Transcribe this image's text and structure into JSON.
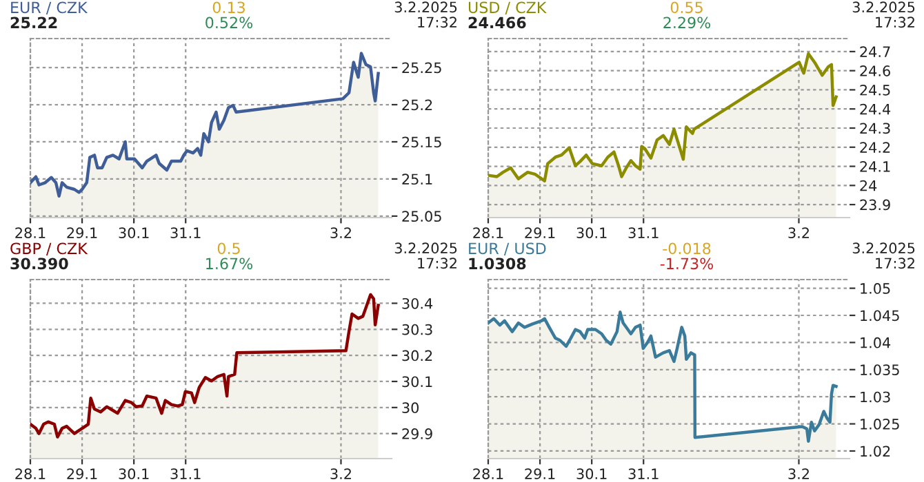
{
  "chart_data": [
    {
      "type": "area",
      "title": "EUR / CZK",
      "subtitle": "25.22",
      "annotations": [
        "0.13",
        "0.52%",
        "3.2.2025",
        "17:32"
      ],
      "x": [
        "2025-01-28T00:00",
        "2025-01-28T02:34",
        "2025-01-28T04:00",
        "2025-01-28T06:52",
        "2025-01-28T09:43",
        "2025-01-28T11:51",
        "2025-01-28T13:18",
        "2025-01-28T14:43",
        "2025-01-28T16:51",
        "2025-01-28T20:25",
        "2025-01-28T22:34",
        "2025-01-29T00:00",
        "2025-01-29T02:08",
        "2025-01-29T03:35",
        "2025-01-29T05:43",
        "2025-01-29T07:09",
        "2025-01-29T09:17",
        "2025-01-29T11:25",
        "2025-01-29T14:17",
        "2025-01-29T17:08",
        "2025-01-29T20:00",
        "2025-01-29T20:43",
        "2025-01-30T00:17",
        "2025-01-30T03:52",
        "2025-01-30T06:00",
        "2025-01-30T10:18",
        "2025-01-30T11:43",
        "2025-01-30T15:17",
        "2025-01-30T17:25",
        "2025-01-30T21:43",
        "2025-01-30T23:08",
        "2025-01-31T00:35",
        "2025-01-31T03:26",
        "2025-01-31T05:34",
        "2025-01-31T07:00",
        "2025-01-31T08:25",
        "2025-01-31T10:34",
        "2025-01-31T12:00",
        "2025-01-31T14:08",
        "2025-01-31T15:35",
        "2025-01-31T17:43",
        "2025-01-31T19:51",
        "2025-01-31T22:00",
        "2025-01-31T23:25",
        "2025-02-03T00:52",
        "2025-02-03T03:43",
        "2025-02-03T05:51",
        "2025-02-03T08:00",
        "2025-02-03T09:26",
        "2025-02-03T11:34",
        "2025-02-03T13:42",
        "2025-02-03T15:09",
        "2025-02-03T15:52",
        "2025-02-03T17:17"
      ],
      "series": [
        {
          "color": "#3f5d97",
          "values": [
            25.095,
            25.103,
            25.092,
            25.095,
            25.102,
            25.095,
            25.077,
            25.095,
            25.089,
            25.086,
            25.082,
            25.086,
            25.095,
            25.129,
            25.132,
            25.115,
            25.115,
            25.129,
            25.132,
            25.127,
            25.15,
            25.127,
            25.127,
            25.115,
            25.124,
            25.132,
            25.121,
            25.112,
            25.124,
            25.124,
            25.132,
            25.138,
            25.135,
            25.141,
            25.132,
            25.161,
            25.15,
            25.176,
            25.19,
            25.167,
            25.179,
            25.196,
            25.199,
            25.19,
            25.208,
            25.216,
            25.257,
            25.237,
            25.269,
            25.254,
            25.251,
            25.216,
            25.205,
            25.242
          ]
        }
      ],
      "xlim": [
        "2025-01-28T00:00",
        "2025-02-03T23:30"
      ],
      "xticks": [
        {
          "value": "2025-01-28",
          "label": "28.1"
        },
        {
          "value": "2025-01-29",
          "label": "29.1"
        },
        {
          "value": "2025-01-30",
          "label": "30.1"
        },
        {
          "value": "2025-01-31",
          "label": "31.1"
        },
        {
          "value": "2025-02-03",
          "label": "3.2"
        }
      ],
      "ylim": [
        25.048,
        25.289
      ],
      "yticks": [
        25.05,
        25.1,
        25.15,
        25.2,
        25.25
      ],
      "grid": true
    },
    {
      "type": "area",
      "title": "USD / CZK",
      "subtitle": "24.466",
      "annotations": [
        "0.55",
        "2.29%",
        "3.2.2025",
        "17:32"
      ],
      "x": [
        "2025-01-28T00:00",
        "2025-01-28T04:00",
        "2025-01-28T06:52",
        "2025-01-28T10:26",
        "2025-01-28T14:00",
        "2025-01-28T18:17",
        "2025-01-28T21:52",
        "2025-01-29T02:08",
        "2025-01-29T03:35",
        "2025-01-29T07:09",
        "2025-01-29T10:00",
        "2025-01-29T13:34",
        "2025-01-29T16:26",
        "2025-01-29T18:35",
        "2025-01-29T21:26",
        "2025-01-30T00:17",
        "2025-01-30T04:34",
        "2025-01-30T07:26",
        "2025-01-30T10:18",
        "2025-01-30T12:26",
        "2025-01-30T13:51",
        "2025-01-30T16:00",
        "2025-01-30T18:09",
        "2025-01-30T20:17",
        "2025-01-30T22:26",
        "2025-01-30T23:08",
        "2025-01-31T00:35",
        "2025-01-31T03:26",
        "2025-01-31T06:17",
        "2025-01-31T09:09",
        "2025-01-31T12:00",
        "2025-01-31T14:08",
        "2025-01-31T16:18",
        "2025-01-31T18:26",
        "2025-01-31T19:51",
        "2025-01-31T22:42",
        "2025-01-31T23:25",
        "2025-02-03T00:09",
        "2025-02-03T02:17",
        "2025-02-03T04:26",
        "2025-02-03T07:18",
        "2025-02-03T10:51",
        "2025-02-03T13:42",
        "2025-02-03T15:09",
        "2025-02-03T15:52",
        "2025-02-03T17:17"
      ],
      "series": [
        {
          "color": "#8c8c00",
          "values": [
            24.053,
            24.046,
            24.069,
            24.092,
            24.035,
            24.069,
            24.058,
            24.024,
            24.114,
            24.148,
            24.159,
            24.197,
            24.103,
            24.125,
            24.159,
            24.114,
            24.103,
            24.148,
            24.175,
            24.103,
            24.046,
            24.092,
            24.13,
            24.103,
            24.085,
            24.204,
            24.193,
            24.143,
            24.238,
            24.261,
            24.215,
            24.294,
            24.215,
            24.137,
            24.306,
            24.272,
            24.294,
            24.644,
            24.587,
            24.689,
            24.644,
            24.576,
            24.621,
            24.632,
            24.418,
            24.463
          ]
        }
      ],
      "xlim": [
        "2025-01-28T00:00",
        "2025-02-03T23:30"
      ],
      "xticks": [
        {
          "value": "2025-01-28",
          "label": "28.1"
        },
        {
          "value": "2025-01-29",
          "label": "29.1"
        },
        {
          "value": "2025-01-30",
          "label": "30.1"
        },
        {
          "value": "2025-01-31",
          "label": "31.1"
        },
        {
          "value": "2025-02-03",
          "label": "3.2"
        }
      ],
      "ylim": [
        23.832,
        24.768
      ],
      "yticks": [
        23.9,
        24,
        24.1,
        24.2,
        24.3,
        24.4,
        24.5,
        24.6,
        24.7
      ],
      "grid": true
    },
    {
      "type": "area",
      "title": "GBP / CZK",
      "subtitle": "30.390",
      "annotations": [
        "0.5",
        "1.67%",
        "3.2.2025",
        "17:32"
      ],
      "x": [
        "2025-01-28T00:00",
        "2025-01-28T02:34",
        "2025-01-28T04:00",
        "2025-01-28T06:09",
        "2025-01-28T08:17",
        "2025-01-28T11:08",
        "2025-01-28T12:35",
        "2025-01-28T14:43",
        "2025-01-28T16:51",
        "2025-01-28T20:25",
        "2025-01-28T22:34",
        "2025-01-29T01:26",
        "2025-01-29T02:51",
        "2025-01-29T04:00",
        "2025-01-29T05:43",
        "2025-01-29T08:34",
        "2025-01-29T11:25",
        "2025-01-29T14:17",
        "2025-01-29T16:26",
        "2025-01-29T20:00",
        "2025-01-29T22:51",
        "2025-01-30T01:00",
        "2025-01-30T03:52",
        "2025-01-30T06:00",
        "2025-01-30T10:18",
        "2025-01-30T12:52",
        "2025-01-30T14:34",
        "2025-01-30T17:25",
        "2025-01-30T20:17",
        "2025-01-30T22:26",
        "2025-01-30T23:51",
        "2025-01-31T02:43",
        "2025-01-31T04:09",
        "2025-01-31T06:17",
        "2025-01-31T09:09",
        "2025-01-31T12:00",
        "2025-01-31T14:51",
        "2025-01-31T17:43",
        "2025-01-31T19:09",
        "2025-01-31T19:51",
        "2025-01-31T22:42",
        "2025-01-31T23:43",
        "2025-02-03T02:17",
        "2025-02-03T03:43",
        "2025-02-03T05:08",
        "2025-02-03T08:00",
        "2025-02-03T10:09",
        "2025-02-03T11:34",
        "2025-02-03T13:42",
        "2025-02-03T15:09",
        "2025-02-03T15:52",
        "2025-02-03T17:17"
      ],
      "series": [
        {
          "color": "#8b0000",
          "values": [
            29.936,
            29.92,
            29.9,
            29.936,
            29.945,
            29.936,
            29.887,
            29.92,
            29.928,
            29.9,
            29.912,
            29.928,
            29.936,
            30.036,
            29.994,
            29.983,
            30.003,
            29.989,
            29.978,
            30.027,
            30.019,
            30.003,
            30.006,
            30.044,
            30.036,
            29.978,
            30.027,
            30.011,
            30.006,
            30.011,
            30.061,
            30.056,
            30.019,
            30.077,
            30.115,
            30.102,
            30.119,
            30.127,
            30.044,
            30.119,
            30.127,
            30.21,
            30.218,
            30.292,
            30.359,
            30.342,
            30.35,
            30.383,
            30.433,
            30.417,
            30.317,
            30.392
          ]
        }
      ],
      "xlim": [
        "2025-01-28T00:00",
        "2025-02-03T23:30"
      ],
      "xticks": [
        {
          "value": "2025-01-28",
          "label": "28.1"
        },
        {
          "value": "2025-01-29",
          "label": "29.1"
        },
        {
          "value": "2025-01-30",
          "label": "30.1"
        },
        {
          "value": "2025-01-31",
          "label": "31.1"
        },
        {
          "value": "2025-02-03",
          "label": "3.2"
        }
      ],
      "ylim": [
        29.804,
        30.491
      ],
      "yticks": [
        29.9,
        30,
        30.1,
        30.2,
        30.3,
        30.4
      ],
      "grid": true
    },
    {
      "type": "area",
      "title": "EUR / USD",
      "subtitle": "1.0308",
      "annotations": [
        "-0.018",
        "-1.73%",
        "3.2.2025",
        "17:32"
      ],
      "x": [
        "2025-01-28T00:00",
        "2025-01-28T02:34",
        "2025-01-28T05:25",
        "2025-01-28T07:34",
        "2025-01-28T11:08",
        "2025-01-28T14:00",
        "2025-01-28T16:51",
        "2025-01-28T20:25",
        "2025-01-29T00:43",
        "2025-01-29T02:08",
        "2025-01-29T04:18",
        "2025-01-29T07:09",
        "2025-01-29T09:17",
        "2025-01-29T12:09",
        "2025-01-29T14:17",
        "2025-01-29T16:26",
        "2025-01-29T18:35",
        "2025-01-29T20:43",
        "2025-01-29T22:09",
        "2025-01-30T01:42",
        "2025-01-30T04:34",
        "2025-01-30T06:43",
        "2025-01-30T08:51",
        "2025-01-30T11:43",
        "2025-01-30T13:09",
        "2025-01-30T14:34",
        "2025-01-30T16:00",
        "2025-01-30T18:09",
        "2025-01-30T20:17",
        "2025-01-30T22:26",
        "2025-01-30T23:51",
        "2025-01-31T02:00",
        "2025-01-31T03:26",
        "2025-01-31T05:34",
        "2025-01-31T09:09",
        "2025-01-31T12:00",
        "2025-01-31T14:08",
        "2025-01-31T15:35",
        "2025-01-31T17:43",
        "2025-01-31T19:09",
        "2025-01-31T19:51",
        "2025-01-31T22:00",
        "2025-01-31T23:43",
        "2025-01-31T23:51",
        "2025-02-03T01:34",
        "2025-02-03T03:43",
        "2025-02-03T04:26",
        "2025-02-03T05:51",
        "2025-02-03T07:18",
        "2025-02-03T09:26",
        "2025-02-03T11:34",
        "2025-02-03T13:00",
        "2025-02-03T14:25",
        "2025-02-03T15:09",
        "2025-02-03T15:52",
        "2025-02-03T17:17"
      ],
      "series": [
        {
          "color": "#3a7a9a",
          "values": [
            1.0436,
            1.0444,
            1.0432,
            1.044,
            1.042,
            1.0436,
            1.0428,
            1.0434,
            1.044,
            1.0444,
            1.0428,
            1.0408,
            1.0404,
            1.0393,
            1.0408,
            1.0424,
            1.042,
            1.0408,
            1.0424,
            1.0424,
            1.0416,
            1.0404,
            1.0397,
            1.042,
            1.0456,
            1.0436,
            1.0428,
            1.0416,
            1.0428,
            1.0432,
            1.0389,
            1.0401,
            1.0412,
            1.0373,
            1.0381,
            1.0385,
            1.0365,
            1.0389,
            1.0428,
            1.0412,
            1.0369,
            1.0381,
            1.0377,
            1.0225,
            1.0245,
            1.0241,
            1.0218,
            1.0253,
            1.0237,
            1.0249,
            1.0273,
            1.0261,
            1.0253,
            1.0305,
            1.0321,
            1.0319
          ]
        }
      ],
      "xlim": [
        "2025-01-28T00:00",
        "2025-02-03T23:30"
      ],
      "xticks": [
        {
          "value": "2025-01-28",
          "label": "28.1"
        },
        {
          "value": "2025-01-29",
          "label": "29.1"
        },
        {
          "value": "2025-01-30",
          "label": "30.1"
        },
        {
          "value": "2025-01-31",
          "label": "31.1"
        },
        {
          "value": "2025-02-03",
          "label": "3.2"
        }
      ],
      "ylim": [
        1.0186,
        1.0516
      ],
      "yticks": [
        1.02,
        1.025,
        1.03,
        1.035,
        1.04,
        1.045,
        1.05
      ],
      "grid": true
    }
  ]
}
